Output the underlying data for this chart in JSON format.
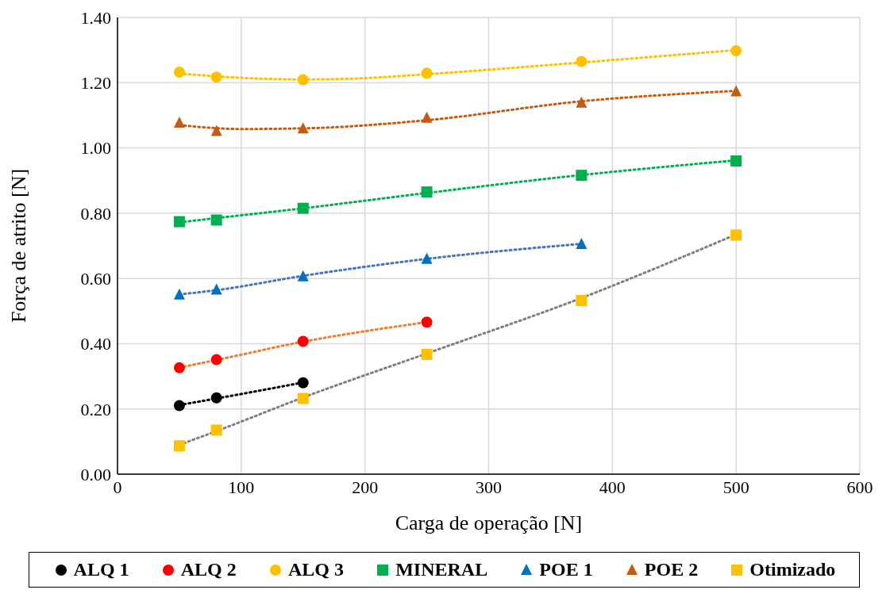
{
  "chart_data": {
    "type": "scatter",
    "xlabel": "Carga de operação [N]",
    "ylabel": "Força de atrito [N]",
    "xlim": [
      0,
      600
    ],
    "xticks": [
      0,
      100,
      200,
      300,
      400,
      500,
      600
    ],
    "ylim": [
      0,
      1.4
    ],
    "yticks": [
      {
        "value": 0,
        "label": "0.00"
      },
      {
        "value": 0.2,
        "label": "0.20"
      },
      {
        "value": 0.4,
        "label": "0.40"
      },
      {
        "value": 0.6,
        "label": "0.60"
      },
      {
        "value": 0.8,
        "label": "0.80"
      },
      {
        "value": 1.0,
        "label": "1.00"
      },
      {
        "value": 1.2,
        "label": "1.20"
      },
      {
        "value": 1.4,
        "label": "1.40"
      }
    ],
    "grid": true,
    "legend": "bottom",
    "series": [
      {
        "name": "ALQ 1",
        "color": "#000000",
        "marker": "circle",
        "x": [
          50,
          80,
          150
        ],
        "values": [
          0.21,
          0.234,
          0.28
        ]
      },
      {
        "name": "ALQ 2",
        "color": "#ff0000",
        "marker": "circle",
        "x": [
          50,
          80,
          150,
          250
        ],
        "values": [
          0.326,
          0.351,
          0.407,
          0.466
        ]
      },
      {
        "name": "ALQ 3",
        "color": "#ffc000",
        "marker": "circle",
        "x": [
          50,
          80,
          150,
          250,
          375,
          500
        ],
        "values": [
          1.232,
          1.217,
          1.209,
          1.229,
          1.265,
          1.298
        ]
      },
      {
        "name": "MINERAL",
        "color": "#00b050",
        "marker": "square",
        "x": [
          50,
          80,
          150,
          250,
          375,
          500
        ],
        "values": [
          0.774,
          0.779,
          0.815,
          0.865,
          0.916,
          0.96
        ]
      },
      {
        "name": "POE 1",
        "color": "#0070c0",
        "marker": "triangle",
        "x": [
          50,
          80,
          150,
          250,
          375
        ],
        "values": [
          0.55,
          0.565,
          0.606,
          0.659,
          0.705
        ]
      },
      {
        "name": "POE 2",
        "color": "#c55a11",
        "marker": "triangle",
        "x": [
          50,
          80,
          150,
          250,
          375,
          500
        ],
        "values": [
          1.077,
          1.051,
          1.059,
          1.092,
          1.138,
          1.173
        ]
      },
      {
        "name": "Otimizado",
        "color": "#ffc000",
        "marker": "square",
        "x": [
          50,
          80,
          150,
          250,
          375,
          500
        ],
        "values": [
          0.087,
          0.135,
          0.232,
          0.367,
          0.532,
          0.733
        ]
      },
      {
        "type": "line",
        "color": "#000000",
        "line_style": "dotted",
        "marker": "none",
        "x": [
          50,
          80,
          150
        ],
        "values": [
          0.212,
          0.232,
          0.281
        ]
      },
      {
        "type": "line",
        "color": "#ed7d31",
        "line_style": "dotted",
        "marker": "none",
        "x": [
          50,
          80,
          150,
          250
        ],
        "values": [
          0.327,
          0.35,
          0.406,
          0.466
        ]
      },
      {
        "type": "line",
        "color": "#ffc000",
        "line_style": "dotted",
        "marker": "none",
        "x": [
          50,
          100,
          150,
          200,
          250,
          375,
          500
        ],
        "values": [
          1.228,
          1.215,
          1.21,
          1.214,
          1.226,
          1.262,
          1.3
        ]
      },
      {
        "type": "line",
        "color": "#00b050",
        "line_style": "dotted",
        "marker": "none",
        "x": [
          50,
          80,
          150,
          250,
          375,
          500
        ],
        "values": [
          0.772,
          0.785,
          0.815,
          0.862,
          0.917,
          0.962
        ]
      },
      {
        "type": "line",
        "color": "#4472c4",
        "line_style": "dotted",
        "marker": "none",
        "x": [
          50,
          80,
          150,
          250,
          375
        ],
        "values": [
          0.551,
          0.564,
          0.608,
          0.66,
          0.706
        ]
      },
      {
        "type": "line",
        "color": "#c55a11",
        "line_style": "dotted",
        "marker": "none",
        "x": [
          50,
          100,
          150,
          250,
          375,
          500
        ],
        "values": [
          1.07,
          1.058,
          1.06,
          1.085,
          1.143,
          1.175
        ]
      },
      {
        "type": "line",
        "color": "#7f7f7f",
        "line_style": "dotted",
        "marker": "none",
        "x": [
          50,
          80,
          150,
          250,
          375,
          500
        ],
        "values": [
          0.09,
          0.132,
          0.235,
          0.37,
          0.54,
          0.735
        ]
      }
    ]
  }
}
